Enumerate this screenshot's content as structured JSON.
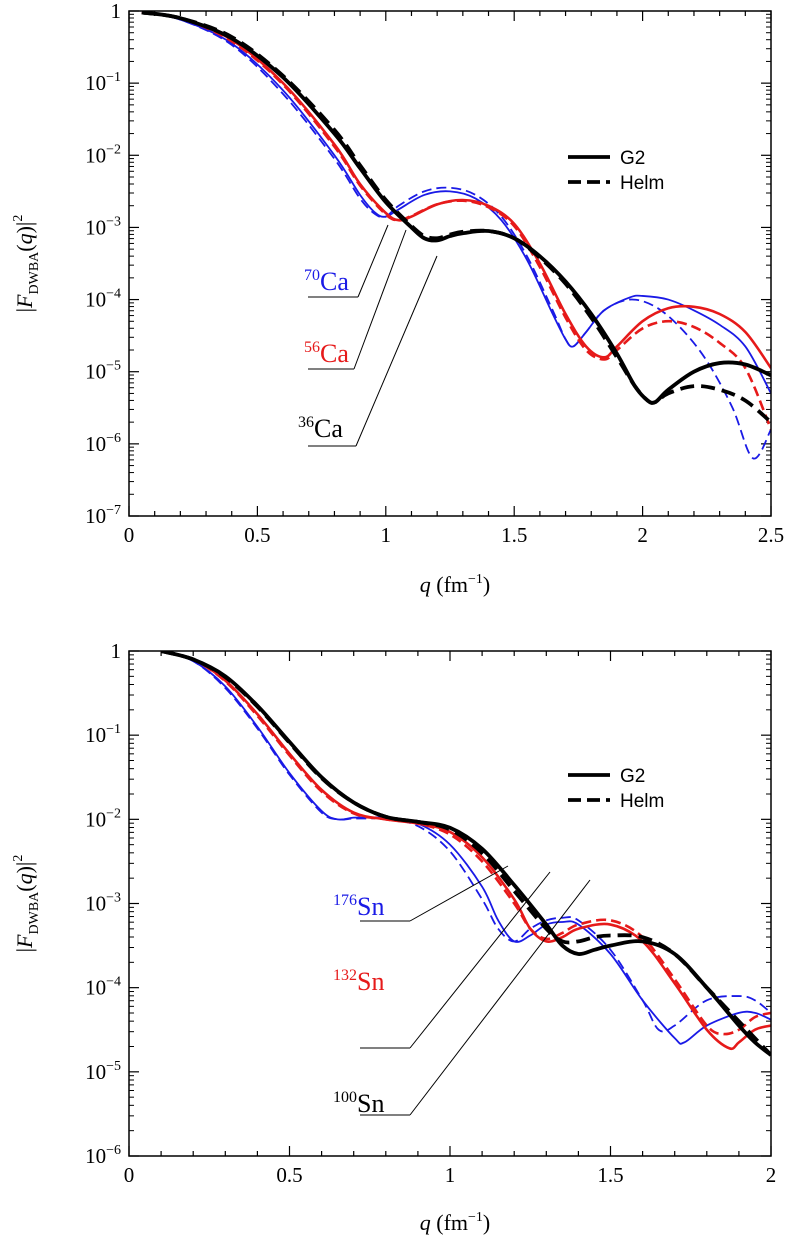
{
  "chart_data": [
    {
      "type": "line",
      "xlabel": "q",
      "xlabel_unit": "(fm",
      "xlabel_unit_exp": "−1",
      "xlabel_unit_close": ")",
      "ylabel": "|F",
      "ylabel_sub": "DWBA",
      "ylabel_arg": "(q)|",
      "ylabel_exp": "2",
      "xlim": [
        0,
        2.5
      ],
      "ylim_log10": [
        -7,
        0
      ],
      "x_ticks": [
        "0",
        "0.5",
        "1",
        "1.5",
        "2",
        "2.5"
      ],
      "x_tick_values": [
        0,
        0.5,
        1,
        1.5,
        2,
        2.5
      ],
      "y_ticks": [
        {
          "base": "1",
          "exp": ""
        },
        {
          "base": "10",
          "exp": "−1"
        },
        {
          "base": "10",
          "exp": "−2"
        },
        {
          "base": "10",
          "exp": "−3"
        },
        {
          "base": "10",
          "exp": "−4"
        },
        {
          "base": "10",
          "exp": "−5"
        },
        {
          "base": "10",
          "exp": "−6"
        },
        {
          "base": "10",
          "exp": "−7"
        }
      ],
      "legend": {
        "placement": "top-right",
        "entries": [
          {
            "label": "G2",
            "style": "solid"
          },
          {
            "label": "Helm",
            "style": "dashed"
          }
        ]
      },
      "labels": [
        {
          "mass": "70",
          "element": "Ca",
          "color": "#1a1ae6"
        },
        {
          "mass": "56",
          "element": "Ca",
          "color": "#e61a1a"
        },
        {
          "mass": "36",
          "element": "Ca",
          "color": "#000000"
        }
      ],
      "series": [
        {
          "name": "70Ca G2",
          "color": "#1a1ae6",
          "style": "solid",
          "weight": "thin",
          "x": [
            0.05,
            0.2,
            0.4,
            0.6,
            0.8,
            0.9,
            0.96,
            1.0,
            1.05,
            1.15,
            1.25,
            1.35,
            1.45,
            1.55,
            1.65,
            1.7,
            1.73,
            1.78,
            1.85,
            1.95,
            2.0,
            2.1,
            2.2,
            2.3,
            2.4,
            2.5
          ],
          "log10y": [
            -0.02,
            -0.12,
            -0.45,
            -1.1,
            -2.0,
            -2.55,
            -2.8,
            -2.85,
            -2.75,
            -2.55,
            -2.5,
            -2.6,
            -2.9,
            -3.45,
            -4.2,
            -4.55,
            -4.65,
            -4.45,
            -4.15,
            -3.97,
            -3.95,
            -4.0,
            -4.15,
            -4.35,
            -4.65,
            -5.3
          ]
        },
        {
          "name": "70Ca Helm",
          "color": "#1a1ae6",
          "style": "dashed",
          "weight": "thin",
          "x": [
            0.05,
            0.2,
            0.4,
            0.6,
            0.8,
            0.9,
            0.96,
            1.0,
            1.05,
            1.15,
            1.25,
            1.35,
            1.45,
            1.55,
            1.65,
            1.7,
            1.73,
            1.78,
            1.85,
            1.95,
            2.05,
            2.15,
            2.25,
            2.35,
            2.43,
            2.5
          ],
          "log10y": [
            -0.02,
            -0.12,
            -0.47,
            -1.15,
            -2.05,
            -2.6,
            -2.82,
            -2.85,
            -2.7,
            -2.5,
            -2.45,
            -2.55,
            -2.85,
            -3.4,
            -4.15,
            -4.55,
            -4.65,
            -4.45,
            -4.15,
            -4.0,
            -4.1,
            -4.4,
            -4.85,
            -5.5,
            -6.2,
            -5.8
          ]
        },
        {
          "name": "56Ca G2",
          "color": "#e61a1a",
          "style": "solid",
          "weight": "medium",
          "x": [
            0.05,
            0.2,
            0.4,
            0.6,
            0.8,
            0.9,
            1.0,
            1.05,
            1.1,
            1.2,
            1.3,
            1.4,
            1.5,
            1.6,
            1.7,
            1.78,
            1.85,
            1.9,
            2.0,
            2.1,
            2.2,
            2.3,
            2.4,
            2.5
          ],
          "log10y": [
            -0.02,
            -0.1,
            -0.4,
            -1.0,
            -1.85,
            -2.4,
            -2.8,
            -2.9,
            -2.85,
            -2.68,
            -2.62,
            -2.7,
            -2.95,
            -3.5,
            -4.2,
            -4.65,
            -4.8,
            -4.65,
            -4.3,
            -4.12,
            -4.1,
            -4.2,
            -4.45,
            -4.95
          ]
        },
        {
          "name": "56Ca Helm",
          "color": "#e61a1a",
          "style": "dashed",
          "weight": "medium",
          "x": [
            0.05,
            0.2,
            0.4,
            0.6,
            0.8,
            0.9,
            1.0,
            1.05,
            1.1,
            1.2,
            1.3,
            1.4,
            1.5,
            1.6,
            1.7,
            1.78,
            1.85,
            1.9,
            2.0,
            2.1,
            2.2,
            2.3,
            2.4,
            2.5
          ],
          "log10y": [
            -0.02,
            -0.1,
            -0.42,
            -1.02,
            -1.88,
            -2.42,
            -2.82,
            -2.9,
            -2.84,
            -2.68,
            -2.63,
            -2.72,
            -2.98,
            -3.55,
            -4.25,
            -4.7,
            -4.83,
            -4.7,
            -4.4,
            -4.3,
            -4.38,
            -4.6,
            -4.95,
            -5.8
          ]
        },
        {
          "name": "36Ca G2",
          "color": "#000000",
          "style": "solid",
          "weight": "thick",
          "x": [
            0.05,
            0.2,
            0.4,
            0.6,
            0.8,
            0.9,
            1.0,
            1.1,
            1.15,
            1.2,
            1.25,
            1.3,
            1.4,
            1.5,
            1.6,
            1.7,
            1.8,
            1.9,
            1.97,
            2.02,
            2.05,
            2.1,
            2.2,
            2.3,
            2.4,
            2.5
          ],
          "log10y": [
            -0.02,
            -0.1,
            -0.38,
            -0.92,
            -1.7,
            -2.18,
            -2.65,
            -3.0,
            -3.15,
            -3.18,
            -3.12,
            -3.08,
            -3.05,
            -3.15,
            -3.4,
            -3.75,
            -4.2,
            -4.75,
            -5.2,
            -5.4,
            -5.42,
            -5.25,
            -5.0,
            -4.88,
            -4.9,
            -5.05
          ]
        },
        {
          "name": "36Ca Helm",
          "color": "#000000",
          "style": "dashed",
          "weight": "thick",
          "x": [
            0.05,
            0.2,
            0.4,
            0.6,
            0.8,
            0.9,
            1.0,
            1.1,
            1.15,
            1.2,
            1.25,
            1.3,
            1.4,
            1.5,
            1.6,
            1.7,
            1.8,
            1.9,
            1.97,
            2.02,
            2.05,
            2.1,
            2.2,
            2.3,
            2.4,
            2.5
          ],
          "log10y": [
            -0.02,
            -0.1,
            -0.36,
            -0.9,
            -1.65,
            -2.14,
            -2.62,
            -2.98,
            -3.12,
            -3.15,
            -3.1,
            -3.06,
            -3.05,
            -3.15,
            -3.42,
            -3.78,
            -4.25,
            -4.8,
            -5.2,
            -5.4,
            -5.42,
            -5.3,
            -5.2,
            -5.25,
            -5.4,
            -5.7
          ]
        }
      ]
    },
    {
      "type": "line",
      "xlabel": "q",
      "xlabel_unit": "(fm",
      "xlabel_unit_exp": "−1",
      "xlabel_unit_close": ")",
      "ylabel": "|F",
      "ylabel_sub": "DWBA",
      "ylabel_arg": "(q)|",
      "ylabel_exp": "2",
      "xlim": [
        0,
        2
      ],
      "ylim_log10": [
        -6,
        0
      ],
      "x_ticks": [
        "0",
        "0.5",
        "1",
        "1.5",
        "2"
      ],
      "x_tick_values": [
        0,
        0.5,
        1,
        1.5,
        2
      ],
      "y_ticks": [
        {
          "base": "1",
          "exp": ""
        },
        {
          "base": "10",
          "exp": "−1"
        },
        {
          "base": "10",
          "exp": "−2"
        },
        {
          "base": "10",
          "exp": "−3"
        },
        {
          "base": "10",
          "exp": "−4"
        },
        {
          "base": "10",
          "exp": "−5"
        },
        {
          "base": "10",
          "exp": "−6"
        }
      ],
      "legend": {
        "placement": "top-right",
        "entries": [
          {
            "label": "G2",
            "style": "solid"
          },
          {
            "label": "Helm",
            "style": "dashed"
          }
        ]
      },
      "labels": [
        {
          "mass": "176",
          "element": "Sn",
          "color": "#1a1ae6"
        },
        {
          "mass": "132",
          "element": "Sn",
          "color": "#e61a1a"
        },
        {
          "mass": "100",
          "element": "Sn",
          "color": "#000000"
        }
      ],
      "series": [
        {
          "name": "176Sn G2",
          "color": "#1a1ae6",
          "style": "solid",
          "weight": "thin",
          "x": [
            0.1,
            0.2,
            0.3,
            0.4,
            0.5,
            0.6,
            0.65,
            0.7,
            0.75,
            0.8,
            0.9,
            1.0,
            1.1,
            1.15,
            1.2,
            1.25,
            1.3,
            1.35,
            1.4,
            1.5,
            1.6,
            1.7,
            1.73,
            1.8,
            1.9,
            1.95,
            2.0
          ],
          "log10y": [
            0,
            -0.12,
            -0.42,
            -0.9,
            -1.45,
            -1.9,
            -2.0,
            -1.98,
            -1.98,
            -1.98,
            -2.05,
            -2.3,
            -2.8,
            -3.2,
            -3.45,
            -3.38,
            -3.25,
            -3.22,
            -3.25,
            -3.6,
            -4.15,
            -4.6,
            -4.65,
            -4.45,
            -4.3,
            -4.3,
            -4.38
          ]
        },
        {
          "name": "176Sn Helm",
          "color": "#1a1ae6",
          "style": "dashed",
          "weight": "thin",
          "x": [
            0.1,
            0.2,
            0.3,
            0.4,
            0.5,
            0.6,
            0.65,
            0.7,
            0.75,
            0.8,
            0.9,
            1.0,
            1.1,
            1.15,
            1.2,
            1.25,
            1.3,
            1.35,
            1.4,
            1.5,
            1.6,
            1.65,
            1.7,
            1.8,
            1.9,
            1.95,
            2.0
          ],
          "log10y": [
            0,
            -0.12,
            -0.44,
            -0.92,
            -1.47,
            -1.92,
            -2.0,
            -1.99,
            -1.99,
            -1.99,
            -2.08,
            -2.38,
            -2.95,
            -3.3,
            -3.45,
            -3.3,
            -3.2,
            -3.17,
            -3.2,
            -3.55,
            -4.15,
            -4.5,
            -4.45,
            -4.15,
            -4.1,
            -4.15,
            -4.3
          ]
        },
        {
          "name": "132Sn G2",
          "color": "#e61a1a",
          "style": "solid",
          "weight": "medium",
          "x": [
            0.1,
            0.2,
            0.3,
            0.4,
            0.5,
            0.6,
            0.7,
            0.8,
            0.9,
            1.0,
            1.1,
            1.2,
            1.25,
            1.3,
            1.35,
            1.4,
            1.5,
            1.6,
            1.7,
            1.8,
            1.87,
            1.9,
            1.95,
            2.0
          ],
          "log10y": [
            0,
            -0.1,
            -0.35,
            -0.75,
            -1.22,
            -1.65,
            -1.92,
            -2.0,
            -2.05,
            -2.15,
            -2.45,
            -2.95,
            -3.3,
            -3.45,
            -3.4,
            -3.3,
            -3.25,
            -3.45,
            -3.95,
            -4.5,
            -4.72,
            -4.65,
            -4.5,
            -4.45
          ]
        },
        {
          "name": "132Sn Helm",
          "color": "#e61a1a",
          "style": "dashed",
          "weight": "medium",
          "x": [
            0.1,
            0.2,
            0.3,
            0.4,
            0.5,
            0.6,
            0.7,
            0.8,
            0.9,
            1.0,
            1.1,
            1.2,
            1.25,
            1.3,
            1.35,
            1.4,
            1.5,
            1.6,
            1.7,
            1.8,
            1.85,
            1.9,
            1.95,
            2.0
          ],
          "log10y": [
            0,
            -0.1,
            -0.36,
            -0.77,
            -1.24,
            -1.67,
            -1.93,
            -2.0,
            -2.05,
            -2.18,
            -2.5,
            -3.0,
            -3.3,
            -3.42,
            -3.35,
            -3.25,
            -3.2,
            -3.4,
            -3.9,
            -4.45,
            -4.55,
            -4.5,
            -4.35,
            -4.3
          ]
        },
        {
          "name": "100Sn G2",
          "color": "#000000",
          "style": "solid",
          "weight": "thick",
          "x": [
            0.1,
            0.2,
            0.3,
            0.4,
            0.5,
            0.6,
            0.7,
            0.8,
            0.9,
            1.0,
            1.1,
            1.2,
            1.3,
            1.35,
            1.4,
            1.45,
            1.5,
            1.6,
            1.7,
            1.8,
            1.9,
            1.95,
            2.0
          ],
          "log10y": [
            0,
            -0.1,
            -0.3,
            -0.65,
            -1.08,
            -1.5,
            -1.8,
            -1.97,
            -2.03,
            -2.1,
            -2.35,
            -2.78,
            -3.25,
            -3.5,
            -3.6,
            -3.55,
            -3.5,
            -3.45,
            -3.6,
            -4.0,
            -4.45,
            -4.65,
            -4.8
          ]
        },
        {
          "name": "100Sn Helm",
          "color": "#000000",
          "style": "dashed",
          "weight": "thick",
          "x": [
            0.1,
            0.2,
            0.3,
            0.4,
            0.5,
            0.6,
            0.7,
            0.8,
            0.9,
            1.0,
            1.1,
            1.2,
            1.3,
            1.35,
            1.4,
            1.45,
            1.5,
            1.6,
            1.7,
            1.8,
            1.9,
            1.95,
            2.0
          ],
          "log10y": [
            0,
            -0.1,
            -0.31,
            -0.66,
            -1.09,
            -1.51,
            -1.8,
            -1.97,
            -2.03,
            -2.12,
            -2.4,
            -2.85,
            -3.3,
            -3.45,
            -3.45,
            -3.4,
            -3.38,
            -3.4,
            -3.6,
            -4.0,
            -4.4,
            -4.6,
            -4.8
          ]
        }
      ]
    }
  ]
}
